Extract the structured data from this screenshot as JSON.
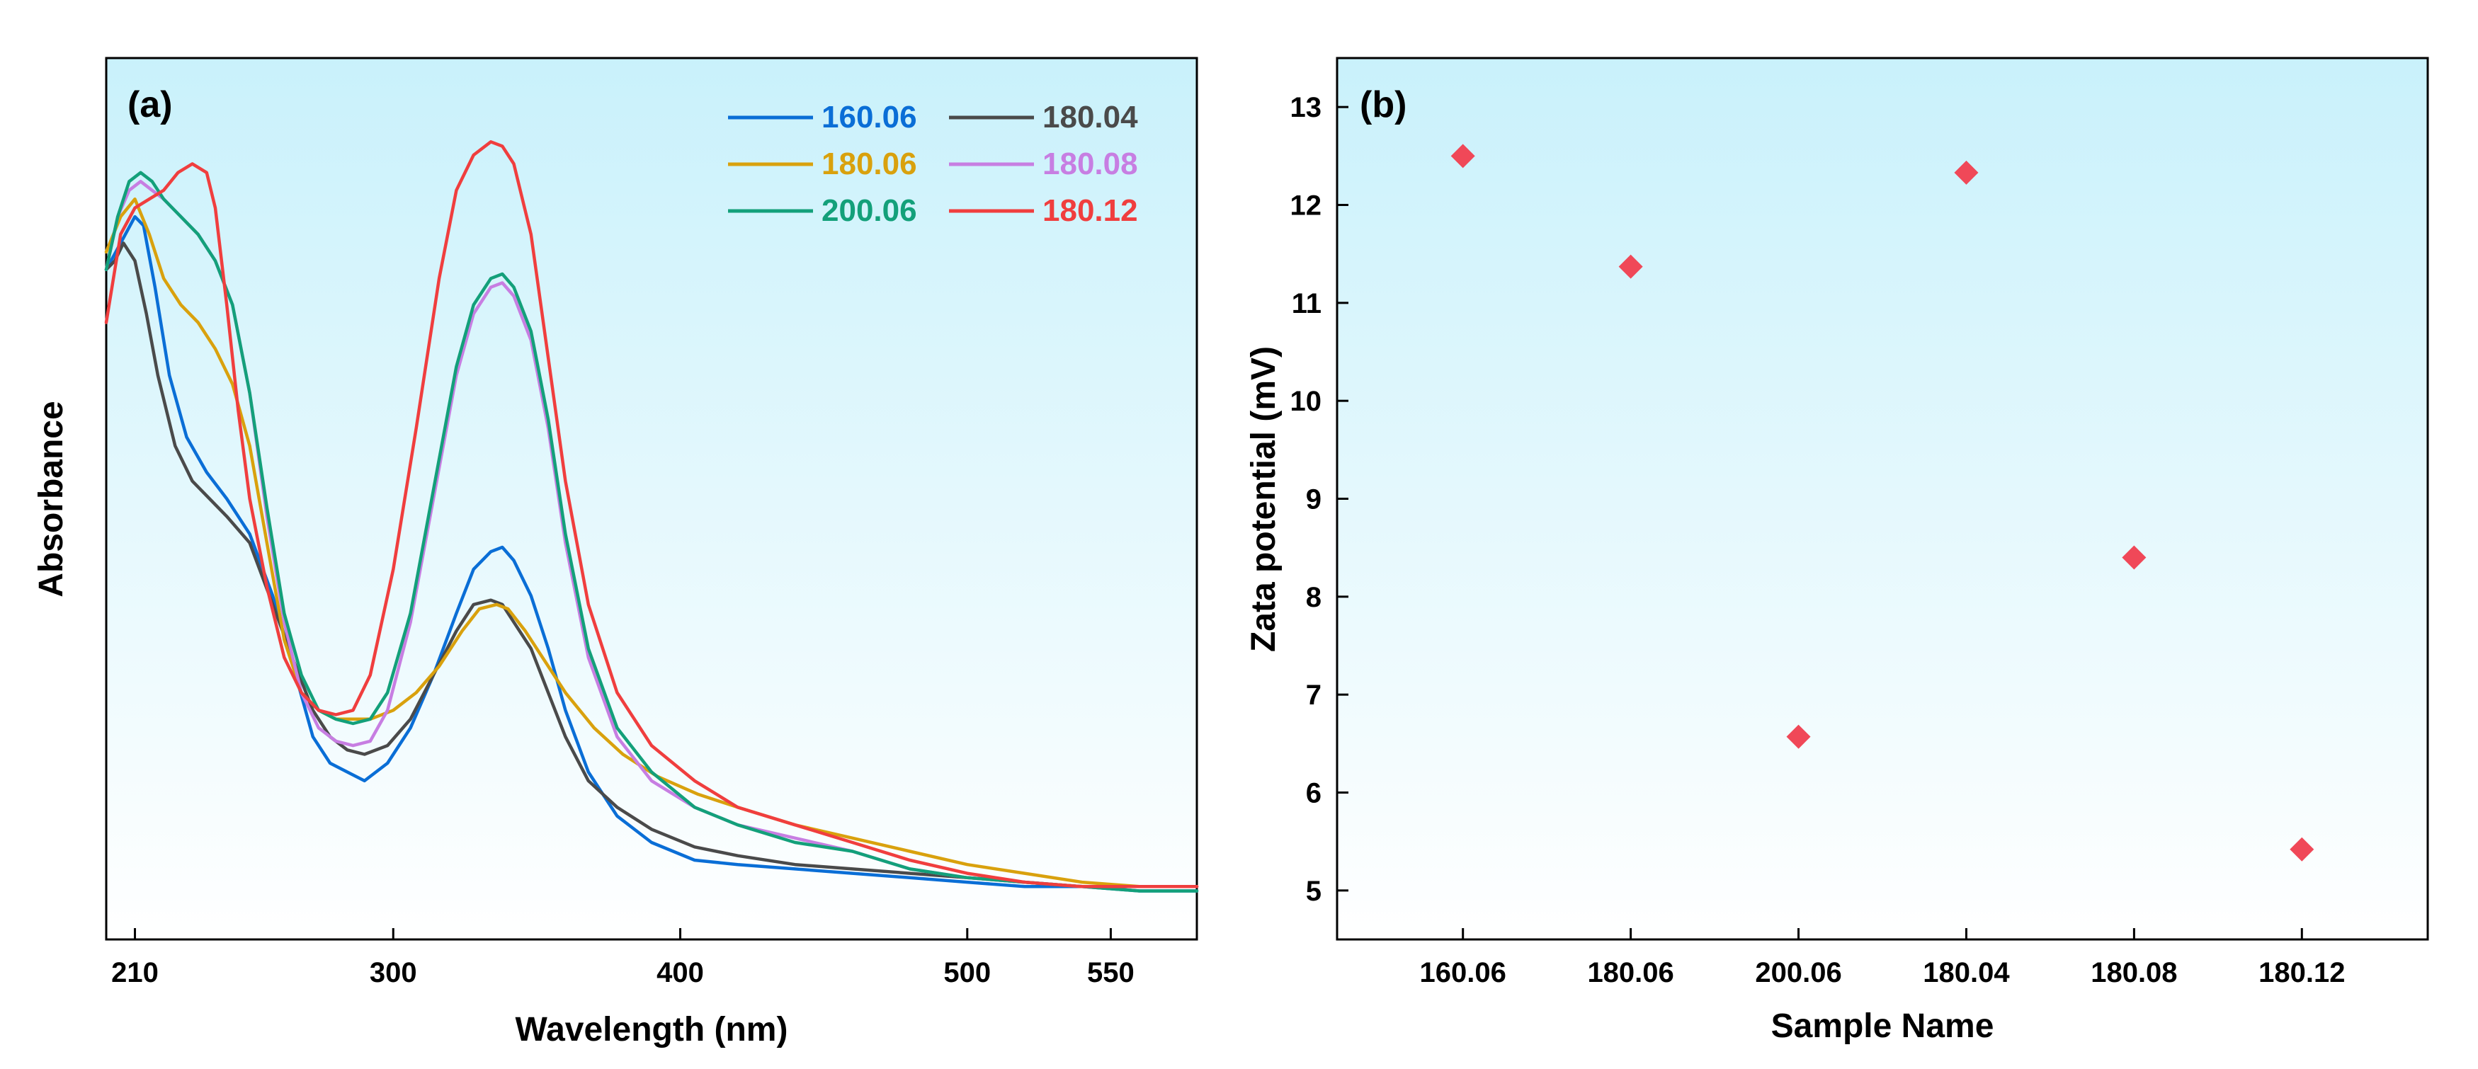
{
  "figure": {
    "panel_a_label": "(a)",
    "panel_b_label": "(b)",
    "background_top": "#c9f1fb",
    "background_bottom": "#ffffff"
  },
  "chart_data": [
    {
      "type": "line",
      "panel": "(a)",
      "title": "",
      "xlabel": "Wavelength (nm)",
      "ylabel": "Absorbance",
      "xlim": [
        200,
        580
      ],
      "ylim": [
        0,
        1
      ],
      "xticks": [
        210,
        300,
        400,
        500,
        550
      ],
      "yticks": [],
      "grid": false,
      "legend_position": "top-right",
      "series": [
        {
          "name": "160.06",
          "color": "#0a6ed6",
          "x": [
            200,
            205,
            210,
            213,
            217,
            222,
            228,
            235,
            242,
            250,
            258,
            266,
            272,
            278,
            284,
            290,
            298,
            306,
            314,
            322,
            328,
            334,
            338,
            342,
            348,
            354,
            360,
            368,
            378,
            390,
            405,
            420,
            440,
            460,
            480,
            500,
            520,
            540,
            560,
            580
          ],
          "y": [
            0.76,
            0.79,
            0.82,
            0.81,
            0.74,
            0.64,
            0.57,
            0.53,
            0.5,
            0.46,
            0.39,
            0.3,
            0.23,
            0.2,
            0.19,
            0.18,
            0.2,
            0.24,
            0.3,
            0.37,
            0.42,
            0.44,
            0.445,
            0.43,
            0.39,
            0.33,
            0.26,
            0.19,
            0.14,
            0.11,
            0.09,
            0.085,
            0.08,
            0.075,
            0.07,
            0.065,
            0.06,
            0.06,
            0.055,
            0.055
          ]
        },
        {
          "name": "180.04",
          "color": "#4a4a4a",
          "x": [
            200,
            203,
            206,
            210,
            214,
            218,
            224,
            230,
            236,
            242,
            250,
            258,
            266,
            272,
            278,
            284,
            290,
            298,
            306,
            314,
            322,
            328,
            334,
            338,
            342,
            348,
            354,
            360,
            368,
            378,
            390,
            405,
            420,
            440,
            460,
            480,
            500,
            520,
            540,
            560,
            580
          ],
          "y": [
            0.76,
            0.77,
            0.79,
            0.77,
            0.71,
            0.64,
            0.56,
            0.52,
            0.5,
            0.48,
            0.45,
            0.38,
            0.31,
            0.26,
            0.23,
            0.215,
            0.21,
            0.22,
            0.25,
            0.3,
            0.35,
            0.38,
            0.385,
            0.38,
            0.36,
            0.33,
            0.28,
            0.23,
            0.18,
            0.15,
            0.125,
            0.105,
            0.095,
            0.085,
            0.08,
            0.075,
            0.07,
            0.065,
            0.06,
            0.06,
            0.06
          ]
        },
        {
          "name": "180.06",
          "color": "#d9a10d",
          "x": [
            200,
            205,
            210,
            215,
            220,
            226,
            232,
            238,
            244,
            250,
            256,
            262,
            268,
            274,
            280,
            286,
            292,
            300,
            308,
            316,
            324,
            330,
            336,
            340,
            346,
            352,
            360,
            370,
            380,
            392,
            406,
            420,
            440,
            460,
            480,
            500,
            520,
            540,
            560,
            580
          ],
          "y": [
            0.78,
            0.82,
            0.84,
            0.8,
            0.75,
            0.72,
            0.7,
            0.67,
            0.63,
            0.56,
            0.45,
            0.34,
            0.28,
            0.26,
            0.25,
            0.25,
            0.25,
            0.26,
            0.28,
            0.31,
            0.35,
            0.375,
            0.38,
            0.375,
            0.35,
            0.32,
            0.28,
            0.24,
            0.21,
            0.185,
            0.165,
            0.15,
            0.13,
            0.115,
            0.1,
            0.085,
            0.075,
            0.065,
            0.06,
            0.06
          ]
        },
        {
          "name": "180.08",
          "color": "#c77ee2",
          "x": [
            200,
            204,
            208,
            212,
            216,
            220,
            226,
            232,
            238,
            244,
            250,
            256,
            262,
            268,
            274,
            280,
            286,
            292,
            298,
            306,
            314,
            322,
            328,
            334,
            338,
            342,
            348,
            354,
            360,
            368,
            378,
            390,
            405,
            420,
            440,
            460,
            480,
            500,
            520,
            540,
            560,
            580
          ],
          "y": [
            0.76,
            0.82,
            0.85,
            0.86,
            0.85,
            0.84,
            0.82,
            0.8,
            0.77,
            0.72,
            0.62,
            0.48,
            0.36,
            0.28,
            0.24,
            0.225,
            0.22,
            0.225,
            0.26,
            0.36,
            0.5,
            0.64,
            0.71,
            0.74,
            0.745,
            0.73,
            0.68,
            0.58,
            0.45,
            0.32,
            0.23,
            0.18,
            0.15,
            0.13,
            0.115,
            0.1,
            0.08,
            0.07,
            0.065,
            0.06,
            0.06,
            0.06
          ]
        },
        {
          "name": "200.06",
          "color": "#13a07a",
          "x": [
            200,
            204,
            208,
            212,
            216,
            220,
            226,
            232,
            238,
            244,
            250,
            256,
            262,
            268,
            274,
            280,
            286,
            292,
            298,
            306,
            314,
            322,
            328,
            334,
            338,
            342,
            348,
            354,
            360,
            368,
            378,
            390,
            405,
            420,
            440,
            460,
            480,
            500,
            520,
            540,
            560,
            580
          ],
          "y": [
            0.76,
            0.82,
            0.86,
            0.87,
            0.86,
            0.84,
            0.82,
            0.8,
            0.77,
            0.72,
            0.62,
            0.49,
            0.37,
            0.3,
            0.26,
            0.25,
            0.245,
            0.25,
            0.28,
            0.37,
            0.51,
            0.65,
            0.72,
            0.75,
            0.755,
            0.74,
            0.69,
            0.59,
            0.46,
            0.33,
            0.24,
            0.19,
            0.15,
            0.13,
            0.11,
            0.1,
            0.08,
            0.07,
            0.065,
            0.06,
            0.055,
            0.055
          ]
        },
        {
          "name": "180.12",
          "color": "#f03e3e",
          "x": [
            200,
            205,
            210,
            215,
            220,
            225,
            230,
            235,
            238,
            242,
            246,
            250,
            256,
            262,
            268,
            274,
            280,
            286,
            292,
            300,
            308,
            316,
            322,
            328,
            334,
            338,
            342,
            348,
            354,
            360,
            368,
            378,
            390,
            405,
            420,
            440,
            460,
            480,
            500,
            520,
            540,
            560,
            580
          ],
          "y": [
            0.7,
            0.8,
            0.83,
            0.84,
            0.85,
            0.87,
            0.88,
            0.87,
            0.83,
            0.72,
            0.6,
            0.5,
            0.4,
            0.32,
            0.28,
            0.26,
            0.255,
            0.26,
            0.3,
            0.42,
            0.58,
            0.75,
            0.85,
            0.89,
            0.905,
            0.9,
            0.88,
            0.8,
            0.66,
            0.52,
            0.38,
            0.28,
            0.22,
            0.18,
            0.15,
            0.13,
            0.11,
            0.09,
            0.075,
            0.065,
            0.06,
            0.06,
            0.06
          ]
        }
      ]
    },
    {
      "type": "scatter",
      "panel": "(b)",
      "title": "",
      "xlabel": "Sample Name",
      "ylabel": "Zata potential (mV)",
      "ylim": [
        4.5,
        13.5
      ],
      "yticks": [
        5,
        6,
        7,
        8,
        9,
        10,
        11,
        12,
        13
      ],
      "categories": [
        "160.06",
        "180.06",
        "200.06",
        "180.04",
        "180.08",
        "180.12"
      ],
      "values": [
        12.5,
        11.37,
        6.57,
        12.33,
        8.4,
        5.42
      ],
      "color": "#f04858",
      "grid": false
    }
  ]
}
